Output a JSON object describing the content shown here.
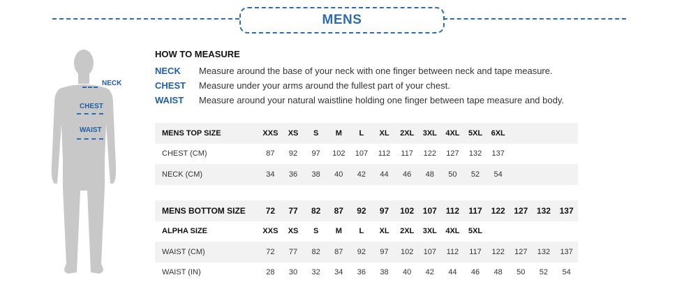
{
  "title": "MENS",
  "how_to": {
    "heading": "HOW TO MEASURE",
    "items": [
      {
        "key": "NECK",
        "text": "Measure around the base of your neck with one finger between neck and tape measure."
      },
      {
        "key": "CHEST",
        "text": "Measure under your arms around the fullest part of your chest."
      },
      {
        "key": "WAIST",
        "text": "Measure around your natural waistline holding one finger between tape measure and body."
      }
    ]
  },
  "figure": {
    "labels": [
      "NECK",
      "CHEST",
      "WAIST"
    ]
  },
  "top_table": {
    "header": {
      "label": "MENS TOP SIZE",
      "cells": [
        "XXS",
        "XS",
        "S",
        "M",
        "L",
        "XL",
        "2XL",
        "3XL",
        "4XL",
        "5XL",
        "6XL"
      ]
    },
    "rows": [
      {
        "label": "CHEST (CM)",
        "cells": [
          "87",
          "92",
          "97",
          "102",
          "107",
          "112",
          "117",
          "122",
          "127",
          "132",
          "137"
        ]
      },
      {
        "label": "NECK (CM)",
        "cells": [
          "34",
          "36",
          "38",
          "40",
          "42",
          "44",
          "46",
          "48",
          "50",
          "52",
          "54"
        ]
      }
    ]
  },
  "bottom_table": {
    "header": {
      "label": "MENS BOTTOM  SIZE",
      "cells": [
        "72",
        "77",
        "82",
        "87",
        "92",
        "97",
        "102",
        "107",
        "112",
        "117",
        "122",
        "127",
        "132",
        "137"
      ]
    },
    "rows": [
      {
        "label": "ALPHA SIZE",
        "bold": true,
        "cells": [
          "XXS",
          "XS",
          "S",
          "M",
          "L",
          "XL",
          "2XL",
          "3XL",
          "4XL",
          "5XL"
        ]
      },
      {
        "label": "WAIST (CM)",
        "cells": [
          "72",
          "77",
          "82",
          "87",
          "92",
          "97",
          "102",
          "107",
          "112",
          "117",
          "122",
          "127",
          "132",
          "137"
        ]
      },
      {
        "label": "WAIST (IN)",
        "cells": [
          "28",
          "30",
          "32",
          "34",
          "36",
          "38",
          "40",
          "42",
          "44",
          "46",
          "48",
          "50",
          "52",
          "54"
        ]
      }
    ]
  },
  "colors": {
    "accent": "#2a6db3",
    "label_blue": "#1f5fa8",
    "row_shade": "#f2f2f2",
    "silhouette": "#c8c8c8"
  }
}
